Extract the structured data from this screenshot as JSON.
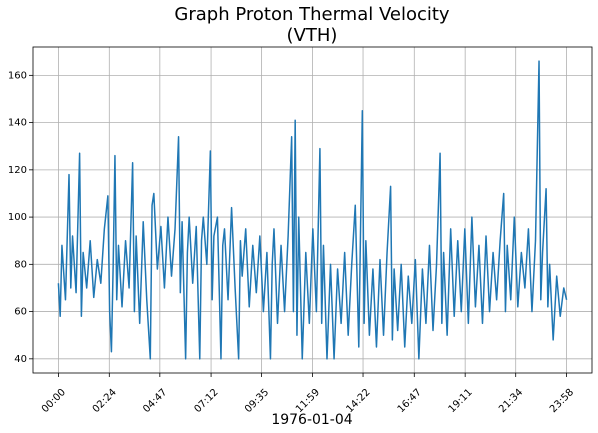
{
  "chart_data": {
    "type": "line",
    "title": [
      "Graph Proton Thermal Velocity",
      "(VTH)"
    ],
    "xlabel": "1976-01-04",
    "color": "#1f77b4",
    "grid": true,
    "x": [
      "00:00",
      "00:05",
      "00:10",
      "00:20",
      "00:30",
      "00:35",
      "00:40",
      "00:50",
      "01:00",
      "01:05",
      "01:10",
      "01:20",
      "01:30",
      "01:40",
      "01:50",
      "02:00",
      "02:10",
      "02:20",
      "02:25",
      "02:30",
      "02:35",
      "02:40",
      "02:45",
      "02:50",
      "03:00",
      "03:10",
      "03:20",
      "03:30",
      "03:35",
      "03:40",
      "03:50",
      "04:00",
      "04:10",
      "04:20",
      "04:25",
      "04:30",
      "04:40",
      "04:50",
      "05:00",
      "05:10",
      "05:20",
      "05:30",
      "05:40",
      "05:45",
      "05:50",
      "06:00",
      "06:05",
      "06:10",
      "06:20",
      "06:30",
      "06:40",
      "06:45",
      "06:50",
      "07:00",
      "07:10",
      "07:15",
      "07:20",
      "07:30",
      "07:40",
      "07:45",
      "07:50",
      "08:00",
      "08:10",
      "08:20",
      "08:30",
      "08:35",
      "08:40",
      "08:50",
      "09:00",
      "09:10",
      "09:20",
      "09:30",
      "09:40",
      "09:50",
      "10:00",
      "10:05",
      "10:10",
      "10:20",
      "10:30",
      "10:40",
      "10:50",
      "11:00",
      "11:05",
      "11:10",
      "11:15",
      "11:20",
      "11:30",
      "11:40",
      "11:50",
      "12:00",
      "12:10",
      "12:20",
      "12:25",
      "12:30",
      "12:40",
      "12:50",
      "13:00",
      "13:10",
      "13:20",
      "13:30",
      "13:40",
      "13:50",
      "14:00",
      "14:10",
      "14:20",
      "14:25",
      "14:30",
      "14:40",
      "14:50",
      "15:00",
      "15:10",
      "15:20",
      "15:30",
      "15:40",
      "15:45",
      "15:50",
      "16:00",
      "16:10",
      "16:20",
      "16:30",
      "16:40",
      "16:50",
      "17:00",
      "17:10",
      "17:20",
      "17:30",
      "17:40",
      "17:50",
      "18:00",
      "18:05",
      "18:10",
      "18:20",
      "18:30",
      "18:40",
      "18:50",
      "19:00",
      "19:10",
      "19:20",
      "19:30",
      "19:40",
      "19:50",
      "20:00",
      "20:10",
      "20:20",
      "20:30",
      "20:40",
      "20:50",
      "21:00",
      "21:05",
      "21:10",
      "21:20",
      "21:30",
      "21:40",
      "21:50",
      "22:00",
      "22:10",
      "22:20",
      "22:30",
      "22:40",
      "22:45",
      "22:50",
      "23:00",
      "23:05",
      "23:10",
      "23:20",
      "23:30",
      "23:40",
      "23:50",
      "23:58"
    ],
    "values": [
      72,
      58,
      88,
      65,
      118,
      70,
      92,
      68,
      127,
      58,
      85,
      70,
      90,
      66,
      82,
      72,
      95,
      109,
      60,
      43,
      80,
      126,
      65,
      88,
      62,
      90,
      70,
      123,
      60,
      92,
      55,
      98,
      65,
      40,
      105,
      110,
      78,
      96,
      70,
      100,
      75,
      95,
      134,
      68,
      98,
      40,
      85,
      100,
      72,
      96,
      40,
      90,
      100,
      80,
      128,
      65,
      92,
      100,
      40,
      88,
      95,
      65,
      104,
      70,
      40,
      90,
      75,
      95,
      62,
      88,
      68,
      92,
      60,
      85,
      40,
      80,
      95,
      55,
      88,
      60,
      92,
      134,
      60,
      141,
      50,
      100,
      40,
      85,
      55,
      95,
      60,
      129,
      55,
      88,
      40,
      80,
      40,
      78,
      55,
      85,
      50,
      80,
      105,
      45,
      145,
      55,
      90,
      50,
      78,
      45,
      82,
      50,
      85,
      113,
      48,
      78,
      52,
      80,
      45,
      75,
      55,
      82,
      40,
      78,
      55,
      88,
      52,
      80,
      127,
      55,
      85,
      50,
      95,
      58,
      90,
      60,
      95,
      55,
      100,
      62,
      88,
      55,
      92,
      60,
      85,
      65,
      90,
      110,
      60,
      88,
      65,
      100,
      62,
      85,
      70,
      95,
      60,
      90,
      166,
      65,
      85,
      112,
      62,
      80,
      48,
      75,
      58,
      70,
      65
    ],
    "ylim": [
      34,
      172
    ],
    "yticks": [
      40,
      60,
      80,
      100,
      120,
      140,
      160
    ],
    "xticks": [
      "00:00",
      "02:24",
      "04:47",
      "07:12",
      "09:35",
      "11:59",
      "14:22",
      "16:47",
      "19:11",
      "21:34",
      "23:58"
    ]
  }
}
